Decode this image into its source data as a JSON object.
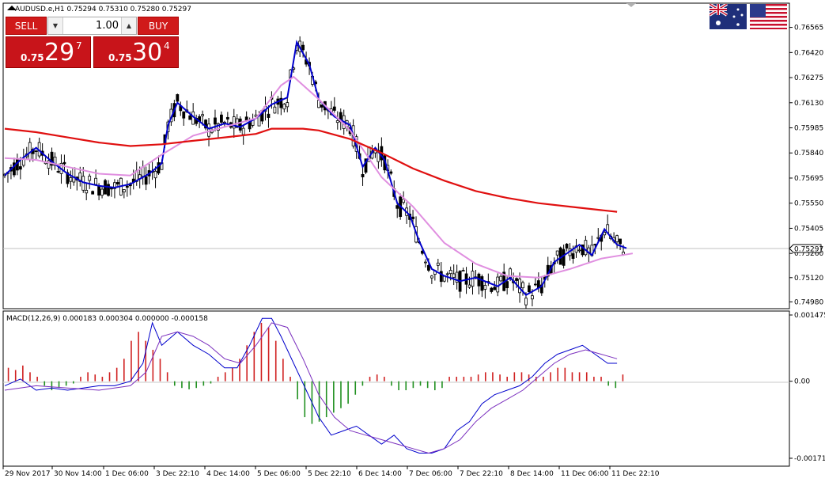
{
  "chart_header": {
    "symbol_line": "AUDUSD.e,H1  0.75294 0.75310 0.75280 0.75297",
    "macd_line": "MACD(12,26,9) 0.000183 0.000304 0.000000 -0.000158"
  },
  "trade_panel": {
    "sell_label": "SELL",
    "buy_label": "BUY",
    "lot_value": "1.00",
    "sell_price_small": "0.75",
    "sell_price_big": "29",
    "sell_price_sup": "7",
    "buy_price_small": "0.75",
    "buy_price_big": "30",
    "buy_price_sup": "4"
  },
  "flags": [
    "australia-flag-icon",
    "usa-flag-icon"
  ],
  "colors": {
    "ma_fast": "#0000cc",
    "ma_medium": "#e08fe0",
    "ma_slow": "#e01010",
    "hist_up": "#d02020",
    "hist_down": "#209020",
    "signal_line": "#7b2fbe",
    "macd_line": "#0000cc"
  },
  "chart_data": [
    {
      "type": "line",
      "title": "AUDUSD.e,H1",
      "ylim": [
        0.7495,
        0.7665
      ],
      "y_ticks": [
        "0.76565",
        "0.76420",
        "0.76275",
        "0.76130",
        "0.75985",
        "0.75840",
        "0.75695",
        "0.75550",
        "0.75405",
        "0.75260",
        "0.75120",
        "0.74980"
      ],
      "current_price_label": "0.75297",
      "current_price": 0.75297,
      "x_ticks": [
        "29 Nov 2017",
        "30 Nov 14:00",
        "1 Dec 06:00",
        "3 Dec 22:10",
        "4 Dec 14:00",
        "5 Dec 06:00",
        "5 Dec 22:10",
        "6 Dec 14:00",
        "7 Dec 06:00",
        "7 Dec 22:10",
        "8 Dec 14:00",
        "11 Dec 06:00",
        "11 Dec 22:10"
      ],
      "x_index_range": [
        0,
        200
      ],
      "series": [
        {
          "values": [
            [
              0,
              0.7571
            ],
            [
              5,
              0.758
            ],
            [
              10,
              0.7587
            ],
            [
              15,
              0.7579
            ],
            [
              20,
              0.7572
            ],
            [
              25,
              0.7567
            ],
            [
              30,
              0.7565
            ],
            [
              35,
              0.7564
            ],
            [
              40,
              0.7566
            ],
            [
              46,
              0.7572
            ],
            [
              50,
              0.7578
            ],
            [
              52,
              0.76
            ],
            [
              55,
              0.7613
            ],
            [
              60,
              0.7605
            ],
            [
              65,
              0.7598
            ],
            [
              70,
              0.7601
            ],
            [
              75,
              0.7599
            ],
            [
              80,
              0.7604
            ],
            [
              85,
              0.7612
            ],
            [
              90,
              0.7616
            ],
            [
              93,
              0.7648
            ],
            [
              97,
              0.7635
            ],
            [
              100,
              0.7615
            ],
            [
              105,
              0.7605
            ],
            [
              110,
              0.76
            ],
            [
              114,
              0.7576
            ],
            [
              118,
              0.7587
            ],
            [
              121,
              0.758
            ],
            [
              125,
              0.7555
            ],
            [
              129,
              0.7548
            ],
            [
              132,
              0.7533
            ],
            [
              136,
              0.7517
            ],
            [
              140,
              0.7513
            ],
            [
              145,
              0.751
            ],
            [
              150,
              0.7512
            ],
            [
              157,
              0.7507
            ],
            [
              161,
              0.7512
            ],
            [
              166,
              0.7502
            ],
            [
              171,
              0.7507
            ],
            [
              175,
              0.7521
            ],
            [
              179,
              0.7526
            ],
            [
              183,
              0.7531
            ],
            [
              187,
              0.7525
            ],
            [
              191,
              0.754
            ],
            [
              195,
              0.7531
            ],
            [
              198,
              0.7529
            ]
          ]
        },
        {
          "values": [
            [
              0,
              0.7581
            ],
            [
              10,
              0.758
            ],
            [
              20,
              0.7576
            ],
            [
              30,
              0.7572
            ],
            [
              40,
              0.7571
            ],
            [
              50,
              0.7583
            ],
            [
              60,
              0.7594
            ],
            [
              70,
              0.7599
            ],
            [
              80,
              0.7604
            ],
            [
              88,
              0.7623
            ],
            [
              92,
              0.7628
            ],
            [
              100,
              0.7615
            ],
            [
              110,
              0.7597
            ],
            [
              120,
              0.757
            ],
            [
              130,
              0.7553
            ],
            [
              140,
              0.7532
            ],
            [
              150,
              0.752
            ],
            [
              160,
              0.7513
            ],
            [
              170,
              0.7512
            ],
            [
              180,
              0.7517
            ],
            [
              190,
              0.7523
            ],
            [
              200,
              0.7526
            ]
          ]
        },
        {
          "values": [
            [
              0,
              0.7598
            ],
            [
              10,
              0.7596
            ],
            [
              20,
              0.7593
            ],
            [
              30,
              0.759
            ],
            [
              40,
              0.7588
            ],
            [
              50,
              0.7589
            ],
            [
              60,
              0.7591
            ],
            [
              70,
              0.7593
            ],
            [
              80,
              0.7595
            ],
            [
              85,
              0.7598
            ],
            [
              90,
              0.7598
            ],
            [
              95,
              0.7598
            ],
            [
              100,
              0.7597
            ],
            [
              110,
              0.7592
            ],
            [
              120,
              0.7584
            ],
            [
              130,
              0.7575
            ],
            [
              140,
              0.7568
            ],
            [
              150,
              0.7562
            ],
            [
              160,
              0.7558
            ],
            [
              170,
              0.7555
            ],
            [
              180,
              0.7553
            ],
            [
              190,
              0.7551
            ],
            [
              195,
              0.755
            ]
          ]
        }
      ]
    },
    {
      "type": "bar",
      "title": "MACD(12,26,9)",
      "ylim": [
        -0.001715,
        0.001475
      ],
      "y_ticks": [
        "0.001475",
        "0.00",
        "-0.001715"
      ],
      "series": [
        {
          "values": [
            0.0003,
            0.00025,
            0.00035,
            0.0002,
            0.0001,
            -0.0001,
            -0.0002,
            -0.00015,
            -0.0001,
            -5e-05,
            0.0001,
            0.0002,
            0.00015,
            0.0001,
            0.0002,
            0.0003,
            0.0005,
            0.0009,
            0.0011,
            0.0009,
            0.0007,
            0.0005,
            0.0002,
            -0.0001,
            -0.00015,
            -0.00018,
            -0.00015,
            -0.0001,
            -5e-05,
            0.0001,
            0.0002,
            0.0003,
            0.0005,
            0.0008,
            0.0011,
            0.0013,
            0.0012,
            0.0009,
            0.0005,
            0.0001,
            -0.0004,
            -0.0008,
            -0.00095,
            -0.0009,
            -0.0008,
            -0.0007,
            -0.0006,
            -0.0005,
            -0.0003,
            -0.0001,
            0.0001,
            0.00015,
            0.0001,
            -0.0001,
            -0.0002,
            -0.0002,
            -0.00015,
            -0.0001,
            -0.00015,
            -0.0002,
            -0.00015,
            0.0001,
            0.0001,
            0.0001,
            0.0001,
            0.00015,
            0.0002,
            0.0002,
            0.00015,
            0.0001,
            0.0002,
            0.0002,
            0.00015,
            0.0001,
            0.0001,
            0.0002,
            0.0003,
            0.0003,
            0.0002,
            0.0002,
            0.0002,
            0.0001,
            0.0001,
            -0.0001,
            -0.00015,
            0.00015
          ]
        },
        {
          "values": [
            [
              0,
              -0.0001
            ],
            [
              5,
              5e-05
            ],
            [
              10,
              -0.0002
            ],
            [
              15,
              -0.00015
            ],
            [
              20,
              -0.0002
            ],
            [
              25,
              -0.00015
            ],
            [
              30,
              -0.0001
            ],
            [
              35,
              -0.0001
            ],
            [
              40,
              0.0
            ],
            [
              44,
              0.0004
            ],
            [
              47,
              0.0013
            ],
            [
              50,
              0.0008
            ],
            [
              55,
              0.0011
            ],
            [
              60,
              0.0008
            ],
            [
              65,
              0.0006
            ],
            [
              70,
              0.0003
            ],
            [
              74,
              0.0003
            ],
            [
              78,
              0.0008
            ],
            [
              82,
              0.0014
            ],
            [
              85,
              0.0014
            ],
            [
              88,
              0.001
            ],
            [
              92,
              0.0004
            ],
            [
              96,
              -0.0002
            ],
            [
              100,
              -0.0008
            ],
            [
              104,
              -0.0012
            ],
            [
              108,
              -0.0011
            ],
            [
              112,
              -0.001
            ],
            [
              116,
              -0.0012
            ],
            [
              120,
              -0.0014
            ],
            [
              124,
              -0.0012
            ],
            [
              128,
              -0.0015
            ],
            [
              132,
              -0.0016
            ],
            [
              136,
              -0.0016
            ],
            [
              140,
              -0.0015
            ],
            [
              144,
              -0.0011
            ],
            [
              148,
              -0.0009
            ],
            [
              152,
              -0.0005
            ],
            [
              156,
              -0.0003
            ],
            [
              160,
              -0.0002
            ],
            [
              164,
              -0.0001
            ],
            [
              168,
              0.0001
            ],
            [
              172,
              0.0004
            ],
            [
              176,
              0.0006
            ],
            [
              180,
              0.0007
            ],
            [
              184,
              0.0008
            ],
            [
              188,
              0.0006
            ],
            [
              192,
              0.0004
            ],
            [
              195,
              0.0004
            ]
          ]
        },
        {
          "values": [
            [
              0,
              -0.0002
            ],
            [
              10,
              -0.0001
            ],
            [
              20,
              -0.00015
            ],
            [
              30,
              -0.0002
            ],
            [
              40,
              -0.0001
            ],
            [
              45,
              0.0002
            ],
            [
              50,
              0.001
            ],
            [
              55,
              0.0011
            ],
            [
              60,
              0.001
            ],
            [
              65,
              0.0008
            ],
            [
              70,
              0.0005
            ],
            [
              75,
              0.0004
            ],
            [
              80,
              0.0008
            ],
            [
              85,
              0.0013
            ],
            [
              90,
              0.0012
            ],
            [
              95,
              0.0005
            ],
            [
              100,
              -0.0003
            ],
            [
              105,
              -0.0008
            ],
            [
              110,
              -0.0011
            ],
            [
              115,
              -0.0012
            ],
            [
              120,
              -0.0013
            ],
            [
              125,
              -0.0014
            ],
            [
              130,
              -0.0015
            ],
            [
              135,
              -0.0016
            ],
            [
              140,
              -0.0015
            ],
            [
              145,
              -0.0013
            ],
            [
              150,
              -0.0009
            ],
            [
              155,
              -0.0006
            ],
            [
              160,
              -0.0004
            ],
            [
              165,
              -0.0002
            ],
            [
              170,
              0.0001
            ],
            [
              175,
              0.0004
            ],
            [
              180,
              0.0006
            ],
            [
              185,
              0.0007
            ],
            [
              190,
              0.0006
            ],
            [
              195,
              0.0005
            ]
          ]
        }
      ]
    }
  ]
}
